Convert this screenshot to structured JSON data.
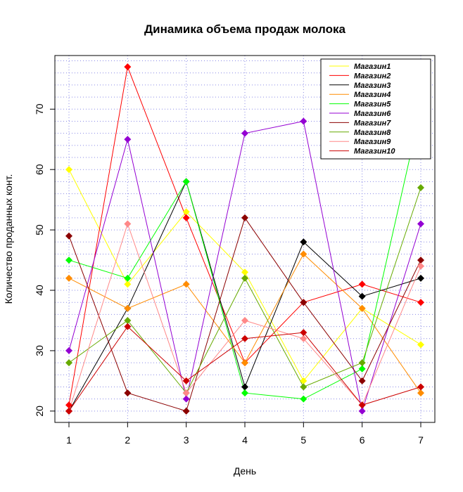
{
  "chart_data": {
    "type": "line",
    "title": "Динамика объема продаж молока",
    "xlabel": "День",
    "ylabel": "Количество проданных конт.",
    "x": [
      1,
      2,
      3,
      4,
      5,
      6,
      7
    ],
    "xlim": [
      0.76,
      7.24
    ],
    "ylim": [
      18.12,
      78.88
    ],
    "yticks": [
      20,
      30,
      40,
      50,
      60,
      70
    ],
    "grid": true,
    "grid_color": "#8a8ae6",
    "marker": "diamond",
    "legend_position": "top-right",
    "series": [
      {
        "name": "Магазин1",
        "color": "#ffff00",
        "values": [
          60,
          41,
          53,
          43,
          25,
          37,
          31
        ]
      },
      {
        "name": "Магазин2",
        "color": "#ff0000",
        "values": [
          21,
          77,
          52,
          28,
          38,
          41,
          38
        ]
      },
      {
        "name": "Магазин3",
        "color": "#000000",
        "values": [
          20,
          37,
          58,
          24,
          48,
          39,
          42
        ]
      },
      {
        "name": "Магазин4",
        "color": "#ff8c00",
        "values": [
          42,
          37,
          41,
          28,
          46,
          37,
          23
        ]
      },
      {
        "name": "Магазин5",
        "color": "#00ff00",
        "values": [
          45,
          42,
          58,
          23,
          22,
          27,
          70
        ]
      },
      {
        "name": "Магазин6",
        "color": "#9400d3",
        "values": [
          30,
          65,
          22,
          66,
          68,
          20,
          51
        ]
      },
      {
        "name": "Магазин7",
        "color": "#8b0000",
        "values": [
          49,
          23,
          20,
          52,
          38,
          25,
          45
        ]
      },
      {
        "name": "Магазин8",
        "color": "#66aa00",
        "values": [
          28,
          35,
          23,
          42,
          24,
          28,
          57
        ]
      },
      {
        "name": "Магазин9",
        "color": "#ff8888",
        "values": [
          20,
          51,
          23,
          35,
          32,
          21,
          44
        ]
      },
      {
        "name": "Магазин10",
        "color": "#cc0000",
        "values": [
          20,
          34,
          25,
          32,
          33,
          21,
          24
        ]
      }
    ]
  }
}
